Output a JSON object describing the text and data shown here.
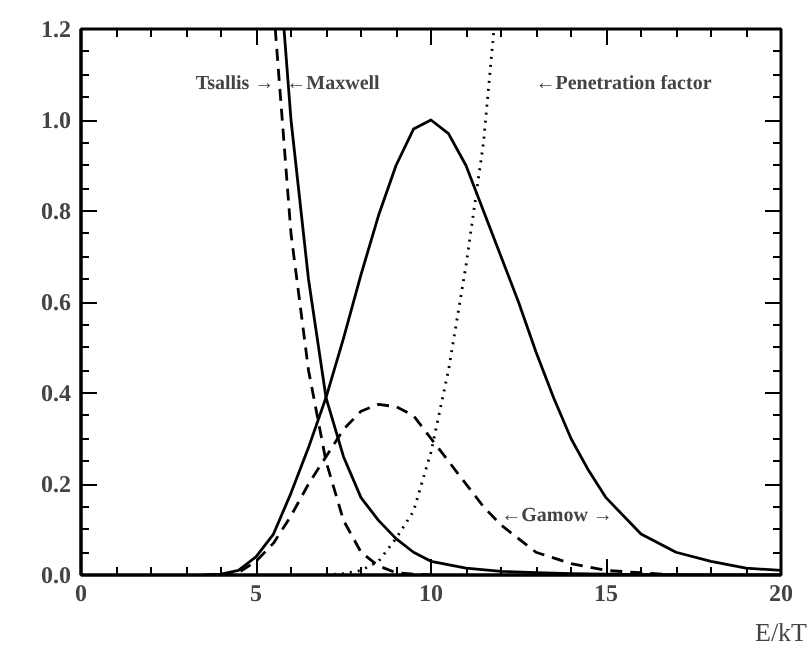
{
  "chart_data": {
    "type": "line",
    "xlabel": "E/kT",
    "xlim": [
      0,
      20
    ],
    "ylim": [
      0,
      1.2
    ],
    "xticks": [
      0,
      5,
      10,
      15,
      20
    ],
    "yticks": [
      {
        "value": 0,
        "label": "0.0"
      },
      {
        "value": 0.2,
        "label": "0.2"
      },
      {
        "value": 0.4,
        "label": "0.4"
      },
      {
        "value": 0.6,
        "label": "0.6"
      },
      {
        "value": 0.8,
        "label": "0.8"
      },
      {
        "value": 1,
        "label": "1.0"
      },
      {
        "value": 1.2,
        "label": "1.2"
      }
    ],
    "grid": false,
    "series": [
      {
        "color": "#000000",
        "line_style": "solid",
        "x": [
          5.8,
          6,
          6.5,
          7,
          7.5,
          8,
          8.5,
          9,
          9.5,
          10,
          11,
          12,
          13,
          14,
          15,
          16,
          17,
          18,
          19,
          20
        ],
        "values": [
          1.2,
          1.0,
          0.65,
          0.39,
          0.26,
          0.17,
          0.12,
          0.08,
          0.05,
          0.03,
          0.015,
          0.008,
          0.005,
          0.003,
          0.002,
          0.001,
          0.001,
          0,
          0,
          0
        ]
      },
      {
        "color": "#000000",
        "line_style": "dashed",
        "x": [
          5.55,
          6,
          6.5,
          7,
          7.5,
          8,
          8.5,
          9,
          9.5,
          10
        ],
        "values": [
          1.2,
          0.75,
          0.45,
          0.25,
          0.12,
          0.05,
          0.02,
          0.005,
          0.002,
          0
        ]
      },
      {
        "color": "#000000",
        "line_style": "dotted",
        "x": [
          7,
          7.5,
          8,
          8.5,
          9,
          9.5,
          10,
          10.5,
          11,
          11.5,
          11.8
        ],
        "values": [
          0,
          0.003,
          0.01,
          0.03,
          0.08,
          0.14,
          0.27,
          0.45,
          0.68,
          0.95,
          1.2
        ]
      },
      {
        "color": "#000000",
        "line_style": "solid",
        "x": [
          3.5,
          4,
          4.5,
          5,
          5.5,
          6,
          6.5,
          7,
          7.5,
          8,
          8.5,
          9,
          9.5,
          10,
          10.5,
          11,
          11.5,
          12,
          12.5,
          13,
          13.5,
          14,
          14.5,
          15,
          16,
          17,
          18,
          19,
          20
        ],
        "values": [
          0,
          0.002,
          0.01,
          0.04,
          0.09,
          0.18,
          0.28,
          0.39,
          0.52,
          0.66,
          0.79,
          0.9,
          0.98,
          1.0,
          0.97,
          0.9,
          0.8,
          0.7,
          0.6,
          0.49,
          0.39,
          0.3,
          0.23,
          0.17,
          0.09,
          0.05,
          0.03,
          0.015,
          0.01
        ]
      },
      {
        "color": "#000000",
        "line_style": "dashed",
        "x": [
          4,
          4.5,
          5,
          5.5,
          6,
          6.5,
          7,
          7.5,
          8,
          8.5,
          9,
          9.5,
          10,
          10.5,
          11,
          11.5,
          12,
          12.5,
          13,
          14,
          15,
          16,
          17
        ],
        "values": [
          0,
          0.005,
          0.03,
          0.07,
          0.13,
          0.2,
          0.26,
          0.32,
          0.36,
          0.375,
          0.37,
          0.35,
          0.3,
          0.25,
          0.2,
          0.15,
          0.11,
          0.08,
          0.05,
          0.025,
          0.01,
          0.005,
          0
        ]
      }
    ],
    "annotations": [
      "Tsallis →",
      "←Maxwell",
      "←Penetration factor",
      "←Gamow →"
    ]
  }
}
